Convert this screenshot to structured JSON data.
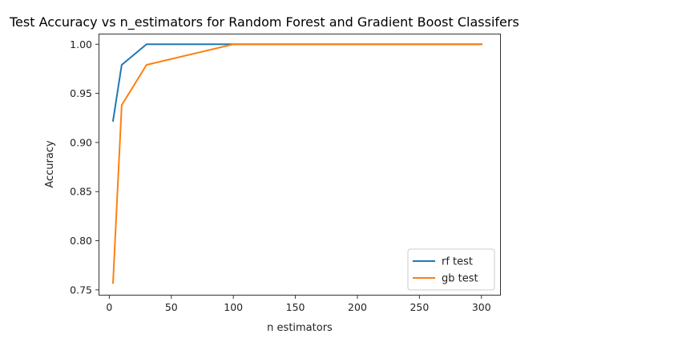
{
  "chart_data": {
    "type": "line",
    "title": "Test Accuracy vs n_estimators for Random Forest and Gradient Boost Classifers",
    "xlabel": "n estimators",
    "ylabel": "Accuracy",
    "xlim": [
      -8,
      315
    ],
    "ylim": [
      0.745,
      1.01
    ],
    "xticks": [
      0,
      50,
      100,
      150,
      200,
      250,
      300
    ],
    "xtick_labels": [
      "0",
      "50",
      "100",
      "150",
      "200",
      "250",
      "300"
    ],
    "yticks": [
      0.75,
      0.8,
      0.85,
      0.9,
      0.95,
      1.0
    ],
    "ytick_labels": [
      "0.75",
      "0.80",
      "0.85",
      "0.90",
      "0.95",
      "1.00"
    ],
    "grid": false,
    "legend_position": "lower-right",
    "series": [
      {
        "name": "rf test",
        "color": "#1f77b4",
        "x": [
          3,
          10,
          30,
          100,
          300
        ],
        "y": [
          0.922,
          0.979,
          1.0,
          1.0,
          1.0
        ]
      },
      {
        "name": "gb test",
        "color": "#ff7f0e",
        "x": [
          3,
          10,
          30,
          100,
          300
        ],
        "y": [
          0.757,
          0.938,
          0.979,
          1.0,
          1.0
        ]
      }
    ]
  }
}
